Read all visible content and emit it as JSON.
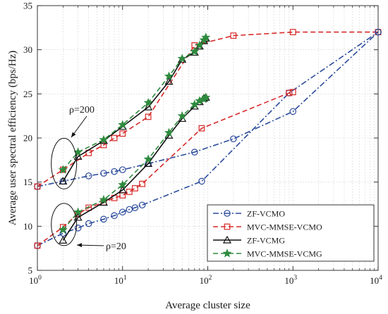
{
  "chart_data": {
    "type": "line",
    "title": "",
    "xlabel": "Average cluster size",
    "ylabel": "Average user  spectral efficiency (bps/Hz)",
    "xscale": "log",
    "xlim": [
      1,
      10000
    ],
    "ylim": [
      5,
      35
    ],
    "grid": true,
    "legend_position": "bottom-right",
    "x_ticks": [
      {
        "value": 1,
        "base": "10",
        "exp": "0"
      },
      {
        "value": 10,
        "base": "10",
        "exp": "1"
      },
      {
        "value": 100,
        "base": "10",
        "exp": "2"
      },
      {
        "value": 1000,
        "base": "10",
        "exp": "3"
      },
      {
        "value": 10000,
        "base": "10",
        "exp": "4"
      }
    ],
    "y_ticks": [
      "5",
      "10",
      "15",
      "20",
      "25",
      "30",
      "35"
    ],
    "series": [
      {
        "name": "ZF-VCMO",
        "color": "#2b4b9b",
        "dash": "dashdot",
        "marker": "circle",
        "group": "ρ=200",
        "x": [
          1,
          2,
          4,
          6,
          8,
          10,
          20,
          70,
          200,
          1000,
          10000
        ],
        "y": [
          14.5,
          15.1,
          15.7,
          16.0,
          16.2,
          16.4,
          17.1,
          18.4,
          19.9,
          23.0,
          32.0
        ]
      },
      {
        "name": "MVC-MMSE-VCMO",
        "color": "#d62a2a",
        "dash": "dashed",
        "marker": "square",
        "group": "ρ=200",
        "x": [
          1,
          2,
          4,
          6,
          8,
          10,
          20,
          70,
          200,
          1000,
          10000
        ],
        "y": [
          14.5,
          16.4,
          18.3,
          19.2,
          20.0,
          20.5,
          22.4,
          30.5,
          31.6,
          32.0,
          32.0
        ]
      },
      {
        "name": "ZF-VCMG",
        "color": "#111111",
        "dash": "solid",
        "marker": "triangle",
        "group": "ρ=200",
        "x": [
          2,
          3,
          6,
          10,
          20,
          35,
          50,
          70,
          80,
          90,
          95
        ],
        "y": [
          15.1,
          17.9,
          19.7,
          21.3,
          23.5,
          26.4,
          28.9,
          29.7,
          30.4,
          31.0,
          31.3
        ]
      },
      {
        "name": "MVC-MMSE-VCMG",
        "color": "#2e8b3e",
        "dash": "dashed",
        "marker": "star",
        "group": "ρ=200",
        "x": [
          2,
          3,
          6,
          10,
          20,
          35,
          50,
          70,
          80,
          90,
          95
        ],
        "y": [
          16.4,
          18.4,
          19.8,
          21.5,
          24.0,
          27.0,
          29.0,
          29.8,
          30.5,
          31.1,
          31.4
        ]
      },
      {
        "name": "ZF-VCMO",
        "color": "#2b4b9b",
        "dash": "dashdot",
        "marker": "circle",
        "group": "ρ=20",
        "x": [
          1,
          2,
          3,
          4,
          6,
          8,
          10,
          12,
          14,
          17,
          85,
          900,
          10000
        ],
        "y": [
          7.8,
          9.2,
          9.8,
          10.3,
          10.8,
          11.2,
          11.6,
          11.9,
          12.1,
          12.4,
          15.1,
          25.1,
          32.0
        ]
      },
      {
        "name": "MVC-MMSE-VCMO",
        "color": "#d62a2a",
        "dash": "dashed",
        "marker": "square",
        "group": "ρ=20",
        "x": [
          1,
          2,
          3,
          4,
          6,
          8,
          10,
          12,
          14,
          17,
          85,
          900,
          1000
        ],
        "y": [
          7.8,
          9.9,
          11.4,
          12.1,
          12.7,
          13.2,
          13.5,
          13.9,
          14.3,
          14.8,
          21.1,
          25.1,
          25.2
        ]
      },
      {
        "name": "ZF-VCMG",
        "color": "#111111",
        "dash": "solid",
        "marker": "triangle",
        "group": "ρ=20",
        "x": [
          2,
          3,
          6,
          10,
          20,
          35,
          50,
          70,
          80,
          90,
          95
        ],
        "y": [
          8.4,
          11.0,
          12.7,
          14.1,
          17.1,
          20.3,
          22.2,
          23.6,
          24.1,
          24.5,
          24.6
        ]
      },
      {
        "name": "MVC-MMSE-VCMG",
        "color": "#2e8b3e",
        "dash": "dashed",
        "marker": "star",
        "group": "ρ=20",
        "x": [
          2,
          3,
          6,
          10,
          20,
          35,
          50,
          70,
          80,
          90,
          95
        ],
        "y": [
          9.6,
          11.6,
          13.0,
          14.7,
          17.6,
          20.6,
          22.5,
          23.8,
          24.2,
          24.4,
          24.6
        ]
      }
    ],
    "legend": [
      {
        "label": "ZF-VCMO",
        "color": "#2b4b9b",
        "dash": "dashdot",
        "marker": "circle"
      },
      {
        "label": "MVC-MMSE-VCMO",
        "color": "#d62a2a",
        "dash": "dashed",
        "marker": "square"
      },
      {
        "label": "ZF-VCMG",
        "color": "#111111",
        "dash": "solid",
        "marker": "triangle"
      },
      {
        "label": "MVC-MMSE-VCMG",
        "color": "#2e8b3e",
        "dash": "dashed",
        "marker": "star"
      }
    ],
    "annotations": [
      {
        "text": "ρ=200",
        "target_x": 2,
        "target_y": 16.5
      },
      {
        "text": "ρ=20",
        "target_x": 2,
        "target_y": 9.0
      }
    ]
  }
}
